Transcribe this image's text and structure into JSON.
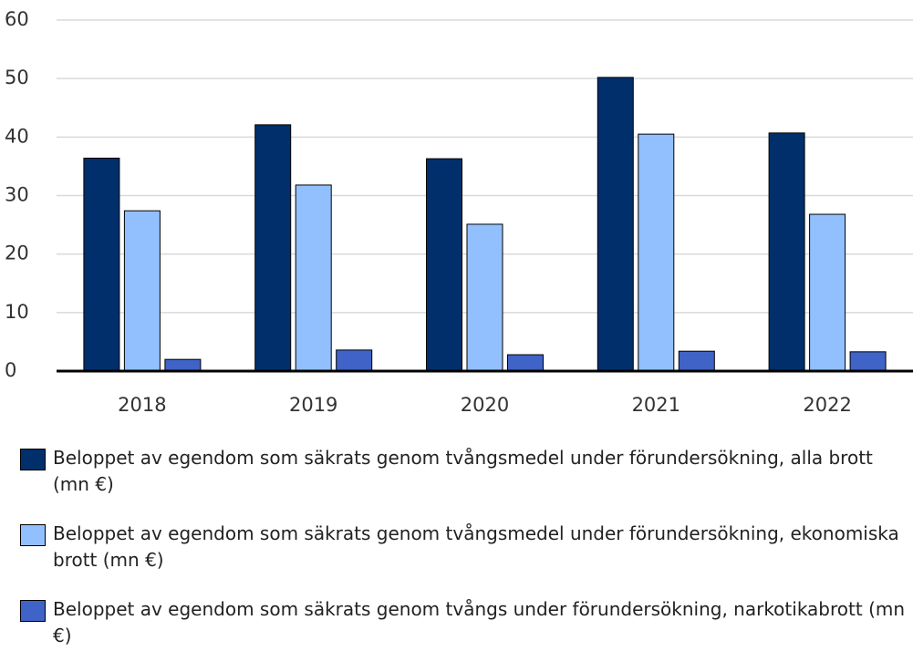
{
  "chart_data": {
    "type": "bar",
    "categories": [
      "2018",
      "2019",
      "2020",
      "2021",
      "2022"
    ],
    "series": [
      {
        "name": "Beloppet av egendom som säkrats genom tvångsmedel under förundersökning, alla brott (mn €)",
        "color": "#002f6c",
        "values": [
          36.4,
          42.1,
          36.3,
          50.2,
          40.7
        ]
      },
      {
        "name": "Beloppet av egendom som säkrats genom tvångsmedel under förundersökning, ekonomiska brott (mn €)",
        "color": "#92c0ff",
        "values": [
          27.4,
          31.8,
          25.1,
          40.5,
          26.8
        ]
      },
      {
        "name": "Beloppet av egendom som säkrats genom tvångs under förundersökning, narkotikabrott (mn €)",
        "color": "#3f63c6",
        "values": [
          2.0,
          3.6,
          2.8,
          3.4,
          3.3
        ]
      }
    ],
    "ylim": [
      0,
      60
    ],
    "yticks": [
      0,
      10,
      20,
      30,
      40,
      50,
      60
    ],
    "grid": true,
    "legend": "bottom"
  }
}
